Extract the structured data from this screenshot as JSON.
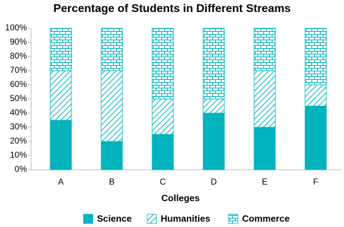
{
  "chart_data": {
    "type": "stacked_bar",
    "title": "Percentage of Students in Different Streams",
    "x_label": "Colleges",
    "categories": [
      "A",
      "B",
      "C",
      "D",
      "E",
      "F"
    ],
    "series": [
      {
        "name": "Science",
        "color": "#00b3bc",
        "pattern": "solid",
        "values": [
          35,
          20,
          25,
          40,
          30,
          45
        ]
      },
      {
        "name": "Humanities",
        "color": "#00b3bc",
        "pattern": "hatch",
        "values": [
          35,
          50,
          25,
          10,
          40,
          15
        ]
      },
      {
        "name": "Commerce",
        "color": "#00b3bc",
        "pattern": "brick",
        "values": [
          30,
          30,
          50,
          50,
          30,
          40
        ]
      }
    ],
    "ylim": [
      0,
      100
    ],
    "yticks": [
      {
        "value": 0,
        "label": "0%"
      },
      {
        "value": 10,
        "label": "10%"
      },
      {
        "value": 20,
        "label": "20%"
      },
      {
        "value": 30,
        "label": "30%"
      },
      {
        "value": 40,
        "label": "40%"
      },
      {
        "value": 50,
        "label": "50%"
      },
      {
        "value": 60,
        "label": "60%"
      },
      {
        "value": 70,
        "label": "70%"
      },
      {
        "value": 80,
        "label": "80%"
      },
      {
        "value": 90,
        "label": "90%"
      },
      {
        "value": 100,
        "label": "100%"
      }
    ],
    "grid": false
  }
}
